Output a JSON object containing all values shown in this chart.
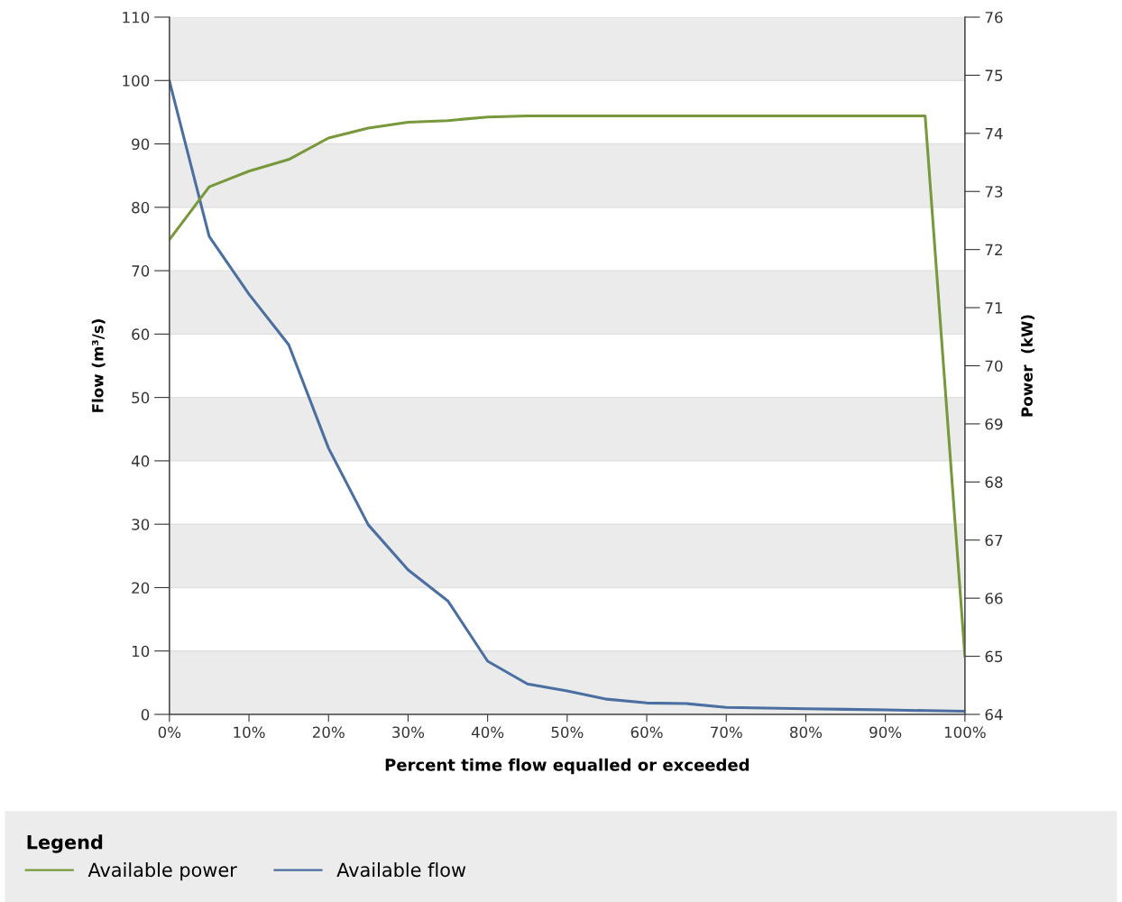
{
  "chart_data": {
    "type": "line",
    "xlabel": "Percent time flow equalled or exceeded",
    "ylabel": "Flow (m³/s)",
    "y2label": "Power  (kW)",
    "legend_title": "Legend",
    "x": [
      0,
      5,
      10,
      15,
      20,
      25,
      30,
      35,
      40,
      45,
      50,
      55,
      60,
      65,
      70,
      75,
      80,
      85,
      90,
      95,
      100
    ],
    "series": [
      {
        "name": "Available power",
        "color": "#77993b",
        "axis": "y2",
        "values": [
          72.17,
          73.08,
          73.35,
          73.55,
          73.92,
          74.09,
          74.19,
          74.22,
          74.28,
          74.3,
          74.3,
          74.3,
          74.3,
          74.3,
          74.3,
          74.3,
          74.3,
          74.3,
          74.3,
          74.3,
          65.0
        ]
      },
      {
        "name": "Available flow",
        "color": "#4a6fa0",
        "values": [
          99.9,
          75.4,
          66.3,
          58.3,
          42.0,
          29.9,
          22.8,
          17.9,
          8.4,
          4.8,
          3.7,
          2.4,
          1.8,
          1.7,
          1.1,
          1.0,
          0.9,
          0.8,
          0.7,
          0.6,
          0.5
        ]
      }
    ],
    "xlim": [
      0,
      100
    ],
    "xticks": [
      {
        "value": 0,
        "label": "0%"
      },
      {
        "value": 10,
        "label": "10%"
      },
      {
        "value": 20,
        "label": "20%"
      },
      {
        "value": 30,
        "label": "30%"
      },
      {
        "value": 40,
        "label": "40%"
      },
      {
        "value": 50,
        "label": "50%"
      },
      {
        "value": 60,
        "label": "60%"
      },
      {
        "value": 70,
        "label": "70%"
      },
      {
        "value": 80,
        "label": "80%"
      },
      {
        "value": 90,
        "label": "90%"
      },
      {
        "value": 100,
        "label": "100%"
      }
    ],
    "ylim": [
      0,
      110
    ],
    "yticks": [
      0,
      10,
      20,
      30,
      40,
      50,
      60,
      70,
      80,
      90,
      100,
      110
    ],
    "y2lim": [
      64,
      76
    ],
    "y2ticks": [
      64,
      65,
      66,
      67,
      68,
      69,
      70,
      71,
      72,
      73,
      74,
      75,
      76
    ],
    "grid": "y",
    "legend": "bottom",
    "marker": "none",
    "line_style": "solid"
  }
}
